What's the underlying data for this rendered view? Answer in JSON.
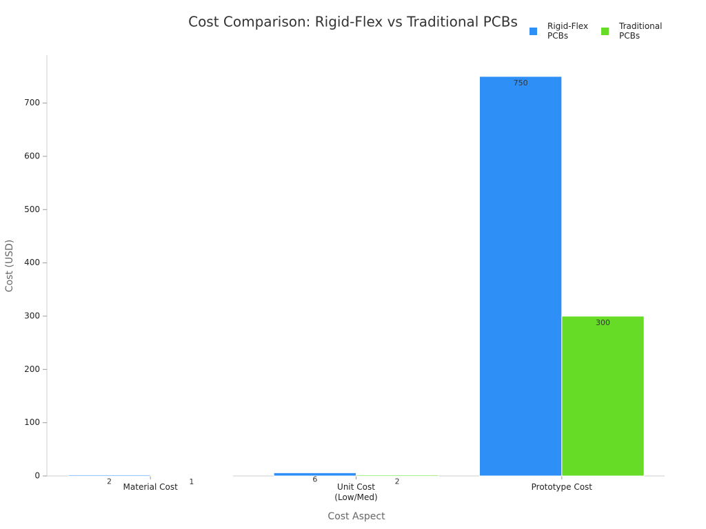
{
  "chart_data": {
    "type": "bar",
    "title": "Cost Comparison: Rigid-Flex vs Traditional PCBs",
    "x_label": "Cost Aspect",
    "y_label": "Cost (USD)",
    "categories": [
      "Material Cost",
      "Unit Cost (Low/Med)",
      "Prototype Cost"
    ],
    "series": [
      {
        "name": "Rigid-Flex PCBs",
        "color": "#2e90f7",
        "values": [
          2,
          6,
          750
        ]
      },
      {
        "name": "Traditional PCBs",
        "color": "#66dc26",
        "values": [
          1,
          2,
          300
        ]
      }
    ],
    "ylim": [
      0,
      790
    ],
    "yticks": [
      0,
      100,
      200,
      300,
      400,
      500,
      600,
      700
    ],
    "legend": "upper right",
    "grid": false
  }
}
